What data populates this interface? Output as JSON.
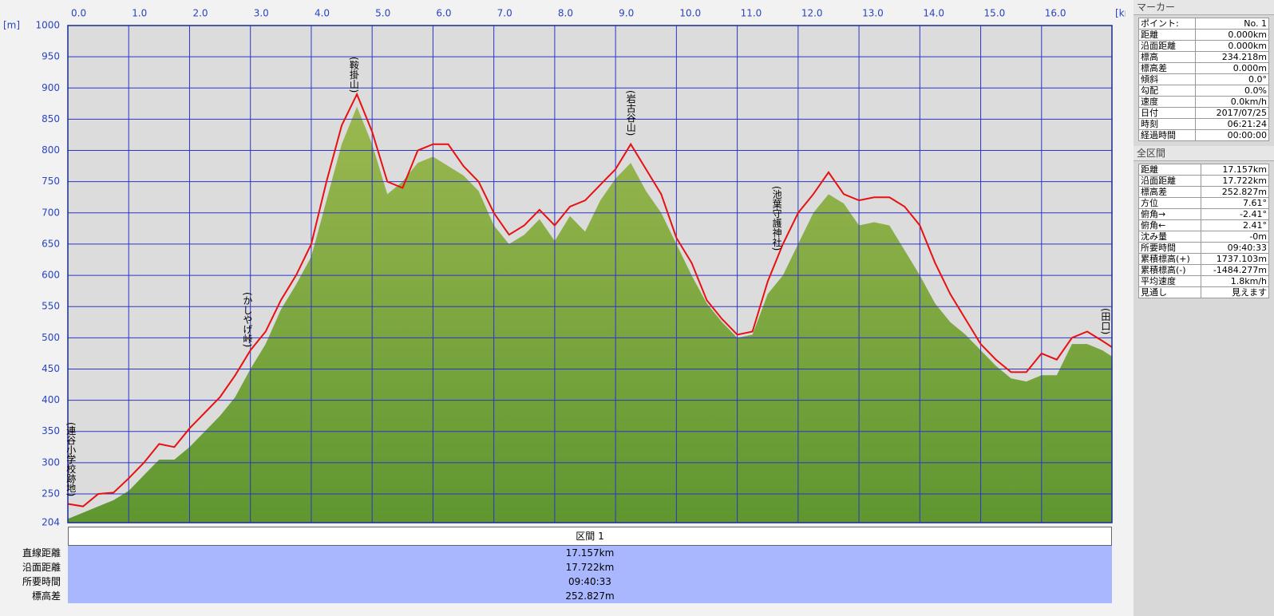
{
  "chart_data": {
    "type": "area",
    "x_unit": "[km]",
    "y_unit": "[m]",
    "x": [
      0,
      0.25,
      0.5,
      0.75,
      1,
      1.25,
      1.5,
      1.75,
      2,
      2.25,
      2.5,
      2.75,
      3,
      3.25,
      3.5,
      3.75,
      4,
      4.25,
      4.5,
      4.75,
      5,
      5.25,
      5.5,
      5.75,
      6,
      6.25,
      6.5,
      6.75,
      7,
      7.25,
      7.5,
      7.75,
      8,
      8.25,
      8.5,
      8.75,
      9,
      9.25,
      9.5,
      9.75,
      10,
      10.25,
      10.5,
      10.75,
      11,
      11.25,
      11.5,
      11.75,
      12,
      12.25,
      12.5,
      12.75,
      13,
      13.25,
      13.5,
      13.75,
      14,
      14.25,
      14.5,
      14.75,
      15,
      15.25,
      15.5,
      15.75,
      16,
      16.25,
      16.5,
      16.75,
      17,
      17.157
    ],
    "series": [
      {
        "type": "area",
        "color": "#5f9630",
        "color_top": "#9cb850",
        "values": [
          210,
          220,
          230,
          240,
          255,
          280,
          305,
          305,
          325,
          350,
          375,
          405,
          450,
          490,
          545,
          585,
          630,
          720,
          810,
          870,
          810,
          730,
          750,
          780,
          790,
          775,
          760,
          735,
          680,
          650,
          665,
          690,
          655,
          695,
          670,
          720,
          755,
          780,
          735,
          700,
          650,
          600,
          555,
          525,
          500,
          505,
          570,
          600,
          650,
          700,
          730,
          715,
          680,
          685,
          680,
          640,
          600,
          555,
          525,
          505,
          480,
          455,
          435,
          430,
          440,
          440,
          490,
          490,
          480,
          470
        ]
      },
      {
        "type": "line",
        "color": "#e81010",
        "values": [
          234,
          230,
          250,
          252,
          275,
          300,
          330,
          325,
          355,
          380,
          405,
          440,
          480,
          510,
          560,
          600,
          650,
          750,
          840,
          890,
          830,
          750,
          740,
          800,
          810,
          810,
          775,
          750,
          700,
          665,
          680,
          705,
          680,
          710,
          720,
          745,
          770,
          810,
          770,
          730,
          660,
          620,
          560,
          530,
          505,
          510,
          590,
          650,
          700,
          730,
          765,
          730,
          720,
          725,
          725,
          710,
          680,
          620,
          570,
          530,
          490,
          465,
          445,
          445,
          475,
          465,
          500,
          510,
          495,
          485
        ]
      }
    ],
    "xlim": [
      0,
      17.157
    ],
    "ylim": [
      204,
      1000
    ],
    "xticks": [
      {
        "value": 0,
        "label": "0.0"
      },
      {
        "value": 1,
        "label": "1.0"
      },
      {
        "value": 2,
        "label": "2.0"
      },
      {
        "value": 3,
        "label": "3.0"
      },
      {
        "value": 4,
        "label": "4.0"
      },
      {
        "value": 5,
        "label": "5.0"
      },
      {
        "value": 6,
        "label": "6.0"
      },
      {
        "value": 7,
        "label": "7.0"
      },
      {
        "value": 8,
        "label": "8.0"
      },
      {
        "value": 9,
        "label": "9.0"
      },
      {
        "value": 10,
        "label": "10.0"
      },
      {
        "value": 11,
        "label": "11.0"
      },
      {
        "value": 12,
        "label": "12.0"
      },
      {
        "value": 13,
        "label": "13.0"
      },
      {
        "value": 14,
        "label": "14.0"
      },
      {
        "value": 15,
        "label": "15.0"
      },
      {
        "value": 16,
        "label": "16.0"
      }
    ],
    "yticks": [
      204,
      250,
      300,
      350,
      400,
      450,
      500,
      550,
      600,
      650,
      700,
      750,
      800,
      850,
      900,
      950,
      1000
    ],
    "grid": true,
    "annotations": [
      {
        "text": "(連谷小学校跡地)",
        "x": 0.05
      },
      {
        "text": "(かしやげ峠)",
        "x": 2.95
      },
      {
        "text": "(鞍掛山)",
        "x": 4.7
      },
      {
        "text": "(岩古谷山)",
        "x": 9.25
      },
      {
        "text": "(池葉守護神社)",
        "x": 11.65
      },
      {
        "text": "(田口)",
        "x": 17.05
      }
    ]
  },
  "section_table": {
    "header": "区間 1",
    "rows": [
      [
        "直線距離",
        "17.157km"
      ],
      [
        "沿面距離",
        "17.722km"
      ],
      [
        "所要時間",
        "09:40:33"
      ],
      [
        "標高差",
        "252.827m"
      ]
    ]
  },
  "marker_panel": {
    "title": "マーカー",
    "rows": [
      [
        "ポイント:",
        "No. 1"
      ],
      [
        "距離",
        "0.000km"
      ],
      [
        "沿面距離",
        "0.000km"
      ],
      [
        "標高",
        "234.218m"
      ],
      [
        "標高差",
        "0.000m"
      ],
      [
        "傾斜",
        "0.0°"
      ],
      [
        "勾配",
        "0.0%"
      ],
      [
        "速度",
        "0.0km/h"
      ],
      [
        "日付",
        "2017/07/25"
      ],
      [
        "時刻",
        "06:21:24"
      ],
      [
        "経過時間",
        "00:00:00"
      ]
    ]
  },
  "total_panel": {
    "title": "全区間",
    "rows": [
      [
        "距離",
        "17.157km"
      ],
      [
        "沿面距離",
        "17.722km"
      ],
      [
        "標高差",
        "252.827m"
      ],
      [
        "方位",
        "7.61°"
      ],
      [
        "俯角→",
        "-2.41°"
      ],
      [
        "俯角←",
        "2.41°"
      ],
      [
        "沈み量",
        "-0m"
      ],
      [
        "所要時間",
        "09:40:33"
      ],
      [
        "累積標高(+)",
        "1737.103m"
      ],
      [
        "累積標高(-)",
        "-1484.277m"
      ],
      [
        "平均速度",
        "1.8km/h"
      ],
      [
        "見通し",
        "見えます"
      ]
    ]
  }
}
